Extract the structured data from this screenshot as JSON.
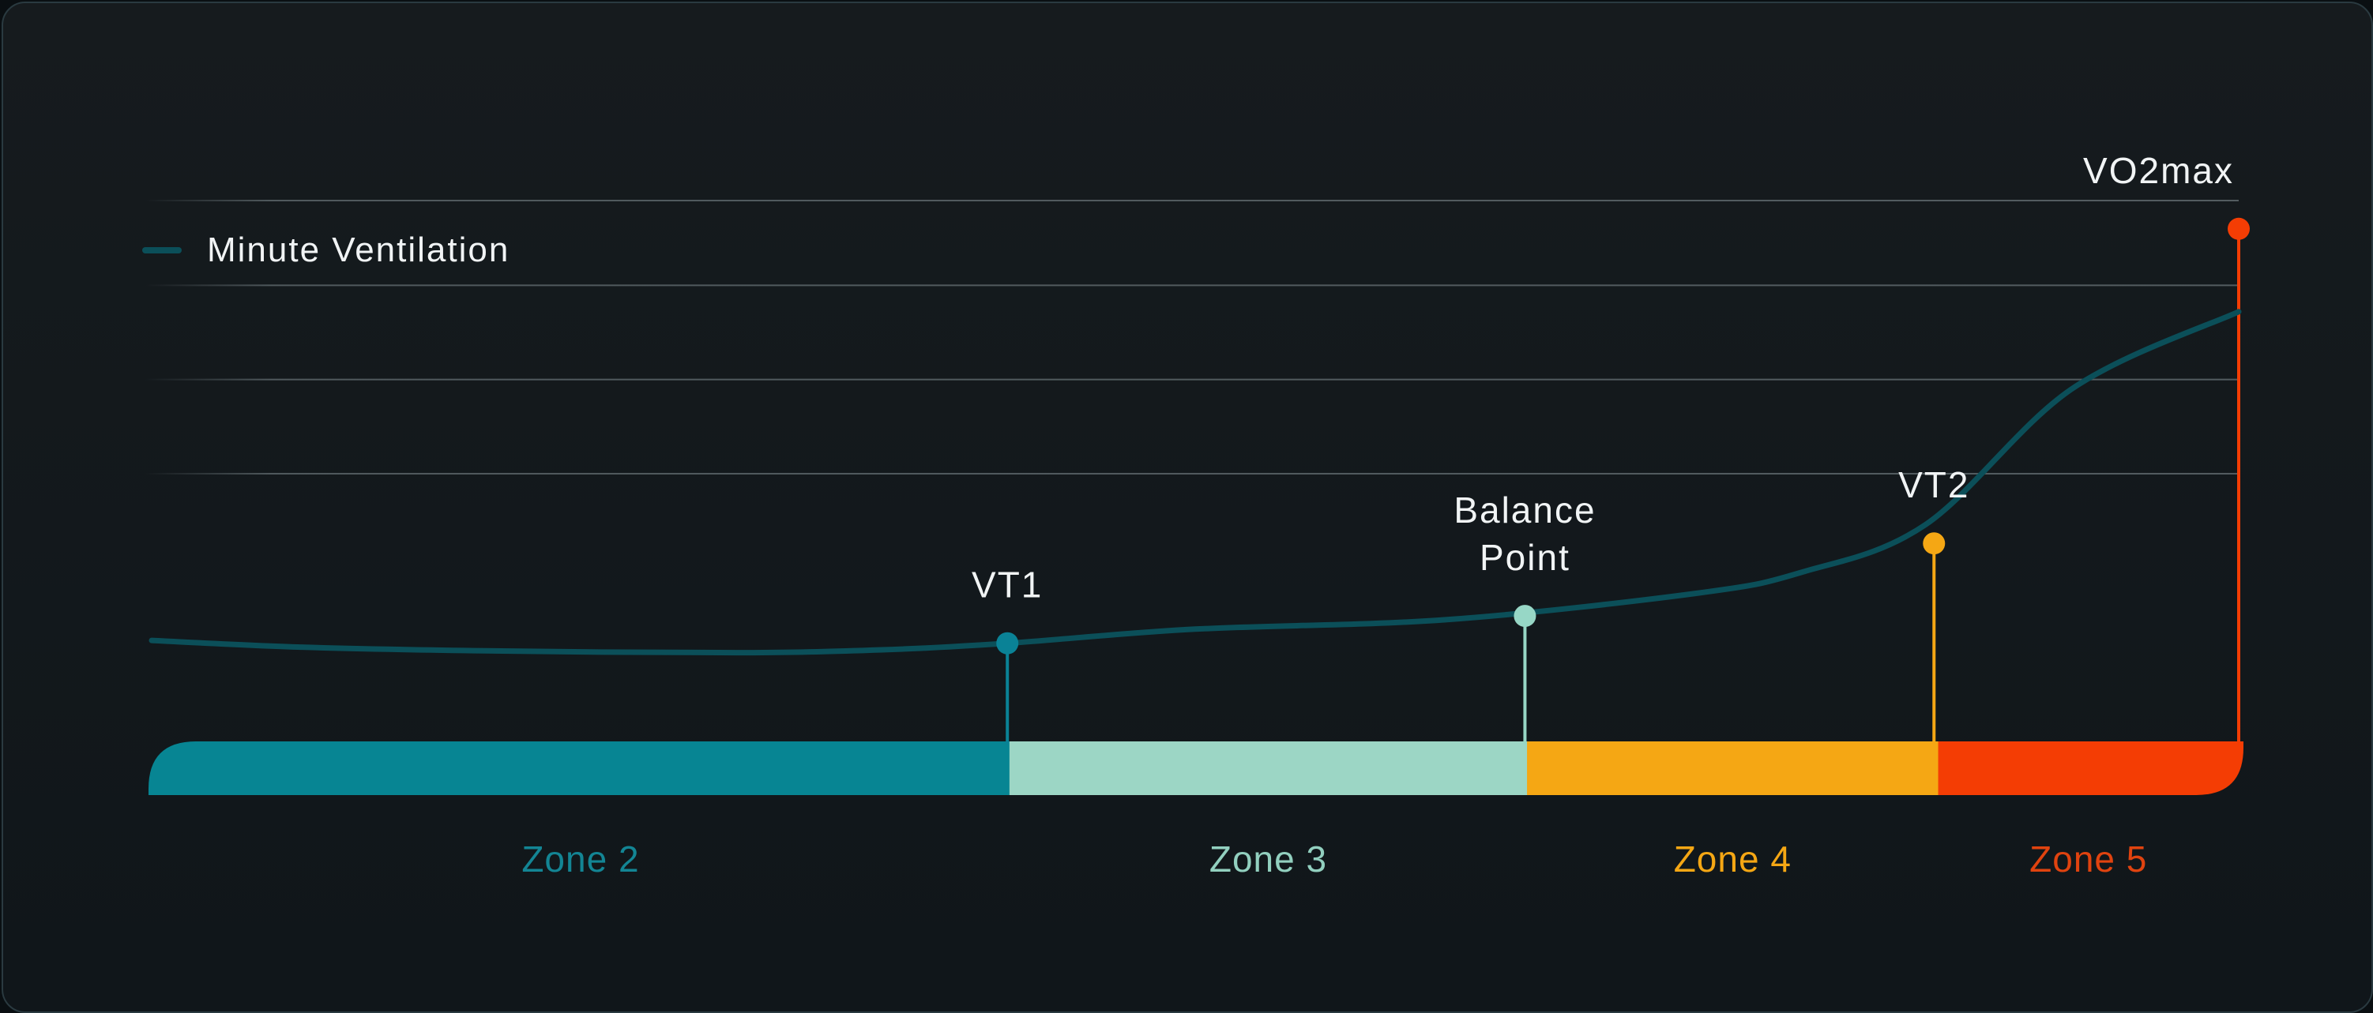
{
  "chart_data": {
    "type": "line",
    "legend": {
      "label": "Minute Ventilation",
      "position": "top-left"
    },
    "series": [
      {
        "name": "Minute Ventilation",
        "color": "#0b4f59",
        "points": [
          [
            0,
            10.3
          ],
          [
            7,
            9.6
          ],
          [
            16,
            9.2
          ],
          [
            28,
            9.0
          ],
          [
            35,
            9.3
          ],
          [
            41,
            10.0
          ],
          [
            50,
            11.5
          ],
          [
            62,
            12.5
          ],
          [
            74,
            15.3
          ],
          [
            79,
            17.5
          ],
          [
            85,
            22.6
          ],
          [
            92,
            37.0
          ],
          [
            100,
            45.2
          ]
        ]
      }
    ],
    "xlim": [
      0,
      100
    ],
    "ylim": [
      0,
      57
    ],
    "gridlines_y": [
      57,
      48,
      38,
      28
    ],
    "markers": [
      {
        "name": "VT1",
        "label_lines": [
          "VT1"
        ],
        "x": 41,
        "y": 10.0,
        "color": "#0a8296"
      },
      {
        "name": "Balance Point",
        "label_lines": [
          "Balance",
          "Point"
        ],
        "x": 65.8,
        "y": 12.9,
        "color": "#97d7c6"
      },
      {
        "name": "VT2",
        "label_lines": [
          "VT2"
        ],
        "x": 85.4,
        "y": 20.6,
        "color": "#f5a714"
      },
      {
        "name": "VO2max",
        "label_lines": [
          "VO2max"
        ],
        "x": 100,
        "y": 54.0,
        "color": "#f43d04"
      }
    ],
    "zones": [
      {
        "name": "Zone 2",
        "from": 0,
        "to": 41.1,
        "color": "#078593",
        "label_color": "#138594"
      },
      {
        "name": "Zone 3",
        "from": 41.1,
        "to": 65.9,
        "color": "#9cd6c5",
        "label_color": "#92d0bf"
      },
      {
        "name": "Zone 4",
        "from": 65.9,
        "to": 85.6,
        "color": "#f5a714",
        "label_color": "#f5a714"
      },
      {
        "name": "Zone 5",
        "from": 85.6,
        "to": 100,
        "color": "#f43d04",
        "label_color": "#e0430f"
      }
    ]
  }
}
